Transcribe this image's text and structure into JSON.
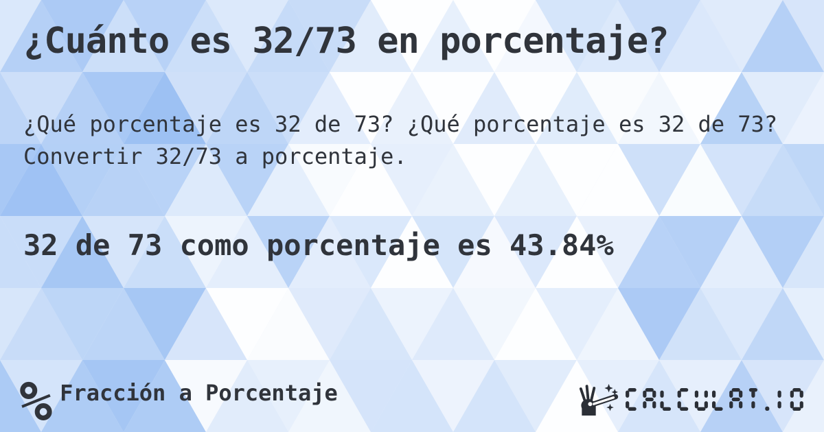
{
  "colors": {
    "text": "#30343b",
    "logo": "#2b2f36",
    "bg_blue": "#92baf2",
    "bg_white": "#ffffff"
  },
  "header": {
    "title": "¿Cuánto es 32/73 en porcentaje?"
  },
  "body": {
    "description": "¿Qué porcentaje es 32 de 73? ¿Qué porcentaje es 32 de 73? Convertir 32/73 a porcentaje.",
    "answer": "32 de 73 como porcentaje es 43.84%"
  },
  "footer": {
    "percent_symbol": "%",
    "category_label": "Fracción a Porcentaje",
    "site_name": "CALCULAT.IO",
    "icons": {
      "left": "percent-icon",
      "right": "magic-wand-hand-icon"
    }
  },
  "background": {
    "pattern": "triangle-mosaic",
    "triangle_width": 120,
    "triangle_height": 105
  }
}
